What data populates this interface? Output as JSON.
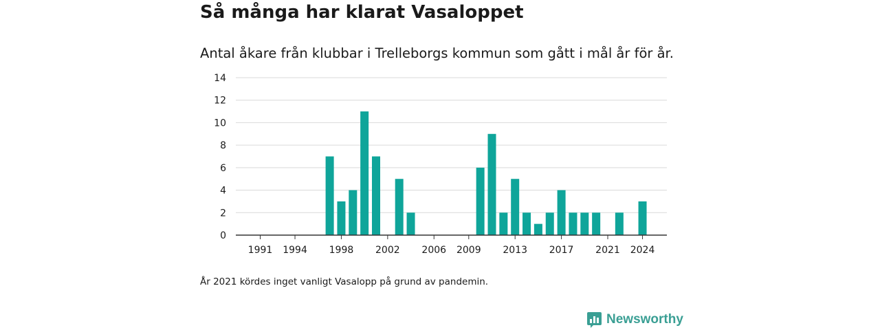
{
  "title": "Så många har klarat Vasaloppet",
  "subtitle": "Antal åkare från klubbar i Trelleborgs kommun som gått i mål år för år.",
  "footnote": "År 2021 kördes inget vanligt Vasalopp på grund av pandemin.",
  "brand": {
    "name": "Newsworthy",
    "color": "#3a9f94",
    "icon": "newsworthy-logo-icon"
  },
  "chart_data": {
    "type": "bar",
    "color": "#0fa59a",
    "x": [
      1991,
      1992,
      1993,
      1994,
      1995,
      1996,
      1997,
      1998,
      1999,
      2000,
      2001,
      2002,
      2003,
      2004,
      2005,
      2006,
      2007,
      2008,
      2009,
      2010,
      2011,
      2012,
      2013,
      2014,
      2015,
      2016,
      2017,
      2018,
      2019,
      2020,
      2021,
      2022,
      2023,
      2024
    ],
    "values": [
      0,
      0,
      0,
      0,
      0,
      0,
      7,
      3,
      4,
      11,
      7,
      0,
      5,
      2,
      0,
      0,
      0,
      0,
      0,
      6,
      9,
      2,
      5,
      2,
      1,
      2,
      4,
      2,
      2,
      2,
      0,
      2,
      0,
      3
    ],
    "xticks": [
      "1991",
      "1994",
      "1998",
      "2002",
      "2006",
      "2009",
      "2013",
      "2017",
      "2021",
      "2024"
    ],
    "yticks": [
      "0",
      "2",
      "4",
      "6",
      "8",
      "10",
      "12",
      "14"
    ],
    "ylim": [
      0,
      14
    ],
    "grid": true
  }
}
